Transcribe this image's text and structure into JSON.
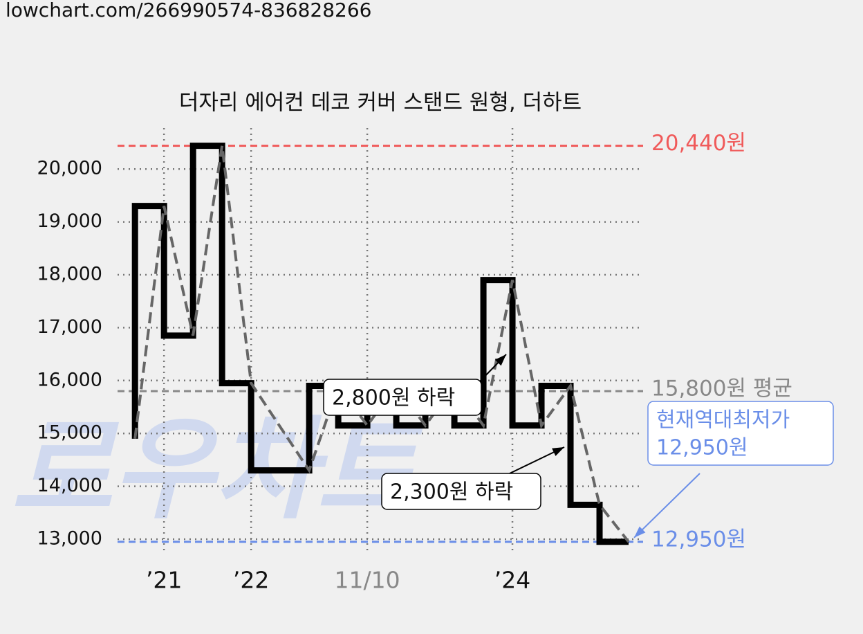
{
  "source": "lowchart.com/266990574-836828266",
  "chart_data": {
    "type": "step",
    "title": "더자리 에어컨 데코 커버 스탠드 원형, 더하트",
    "watermark": "로우차트",
    "x": [
      0,
      1,
      2,
      3,
      4,
      6,
      7,
      8,
      9,
      10,
      11,
      12,
      13,
      14,
      15,
      16,
      17
    ],
    "series": [
      {
        "color": "#000000",
        "values": [
          14900,
          19300,
          16850,
          20440,
          15950,
          14300,
          15900,
          15150,
          15900,
          15150,
          15900,
          15150,
          17900,
          15150,
          15900,
          13650,
          12950
        ]
      }
    ],
    "trend_color": "#666666",
    "xlim": [
      -0.6,
      17.5
    ],
    "xticks": [
      {
        "value": 1,
        "label": "’21"
      },
      {
        "value": 4,
        "label": "’22"
      },
      {
        "value": 8,
        "label": "11/10"
      },
      {
        "value": 13,
        "label": "’24"
      }
    ],
    "ylim": [
      12725,
      20775
    ],
    "yticks": [
      {
        "value": 13000,
        "label": "13,000"
      },
      {
        "value": 14000,
        "label": "14,000"
      },
      {
        "value": 15000,
        "label": "15,000"
      },
      {
        "value": 16000,
        "label": "16,000"
      },
      {
        "value": 17000,
        "label": "17,000"
      },
      {
        "value": 18000,
        "label": "18,000"
      },
      {
        "value": 19000,
        "label": "19,000"
      },
      {
        "value": 20000,
        "label": "20,000"
      }
    ],
    "grid": true,
    "reference_lines": [
      {
        "value": 20440,
        "label": "20,440원",
        "color": "#f05a5a"
      },
      {
        "value": 15800,
        "label": "15,800원 평균",
        "color": "#888888"
      },
      {
        "value": 12950,
        "label": "12,950원",
        "color": "#6a8ee8"
      }
    ],
    "annotations": [
      {
        "text": "2,800원 하락"
      },
      {
        "text": "2,300원 하락"
      },
      {
        "lines": [
          "현재역대최저가",
          "12,950원"
        ],
        "color": "#6a8ee8"
      }
    ]
  }
}
